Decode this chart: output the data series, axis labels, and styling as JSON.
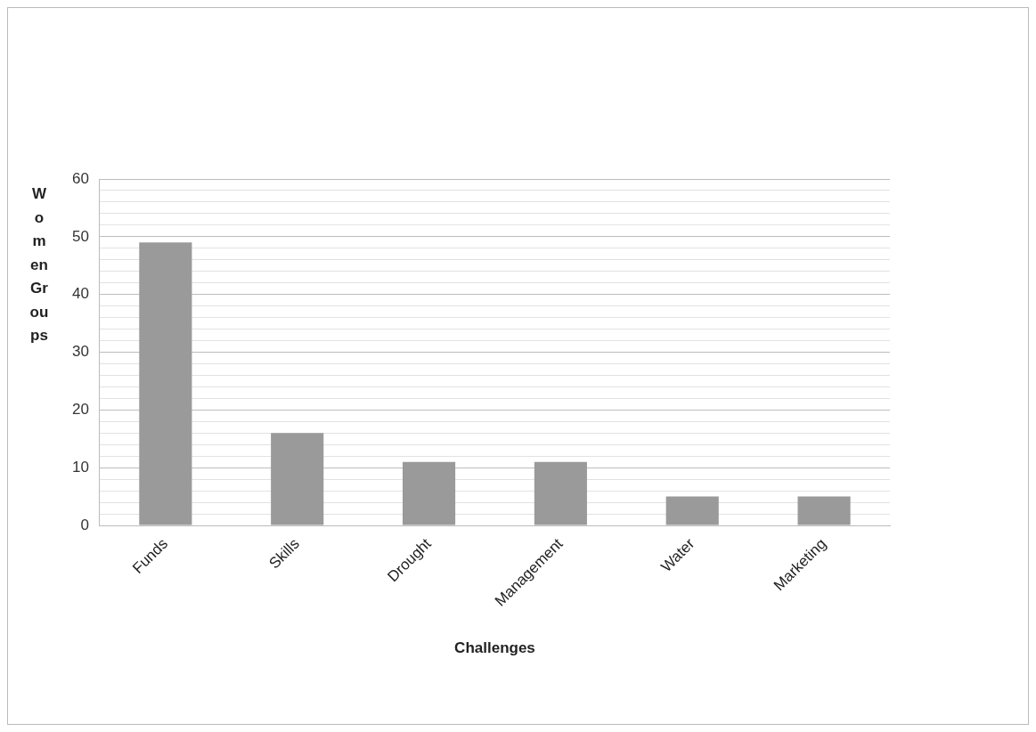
{
  "chart_data": {
    "type": "bar",
    "xlabel": "Challenges",
    "ylabel": "WomenGroups",
    "categories": [
      "Funds",
      "Skills",
      "Drought",
      "Management",
      "Water",
      "Marketing"
    ],
    "values": [
      49,
      16,
      11,
      11,
      5,
      5
    ],
    "color": "#9a9a9a",
    "ylim": [
      0,
      60
    ],
    "yticks": [
      0,
      {
        "value": 2,
        "label": null
      },
      {
        "value": 4,
        "label": null
      },
      {
        "value": 6,
        "label": null
      },
      {
        "value": 8,
        "label": null
      },
      10,
      {
        "value": 12,
        "label": null
      },
      {
        "value": 14,
        "label": null
      },
      {
        "value": 16,
        "label": null
      },
      {
        "value": 18,
        "label": null
      },
      20,
      {
        "value": 22,
        "label": null
      },
      {
        "value": 24,
        "label": null
      },
      {
        "value": 26,
        "label": null
      },
      {
        "value": 28,
        "label": null
      },
      30,
      {
        "value": 32,
        "label": null
      },
      {
        "value": 34,
        "label": null
      },
      {
        "value": 36,
        "label": null
      },
      {
        "value": 38,
        "label": null
      },
      40,
      {
        "value": 42,
        "label": null
      },
      {
        "value": 44,
        "label": null
      },
      {
        "value": 46,
        "label": null
      },
      {
        "value": 48,
        "label": null
      },
      50,
      {
        "value": 52,
        "label": null
      },
      {
        "value": 54,
        "label": null
      },
      {
        "value": 56,
        "label": null
      },
      {
        "value": 58,
        "label": null
      },
      60
    ],
    "grid": "y",
    "legend": false
  }
}
